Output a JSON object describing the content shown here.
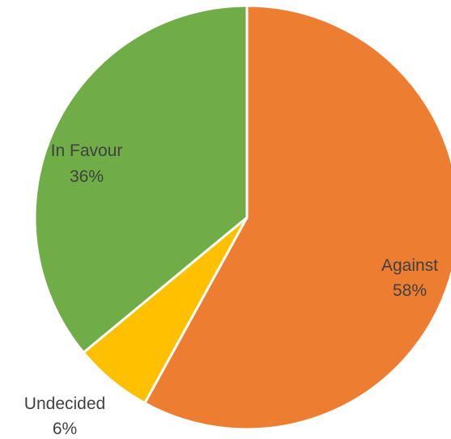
{
  "chart_data": {
    "type": "pie",
    "slices": [
      {
        "label": "Against",
        "value": 58,
        "value_label": "58%",
        "color": "#ED7D31"
      },
      {
        "label": "Undecided",
        "value": 6,
        "value_label": "6%",
        "color": "#FFC000"
      },
      {
        "label": "In Favour",
        "value": 36,
        "value_label": "36%",
        "color": "#70AD47"
      }
    ],
    "start_angle": "12 o'clock",
    "direction": "clockwise",
    "data_labels": "category and percentage"
  }
}
